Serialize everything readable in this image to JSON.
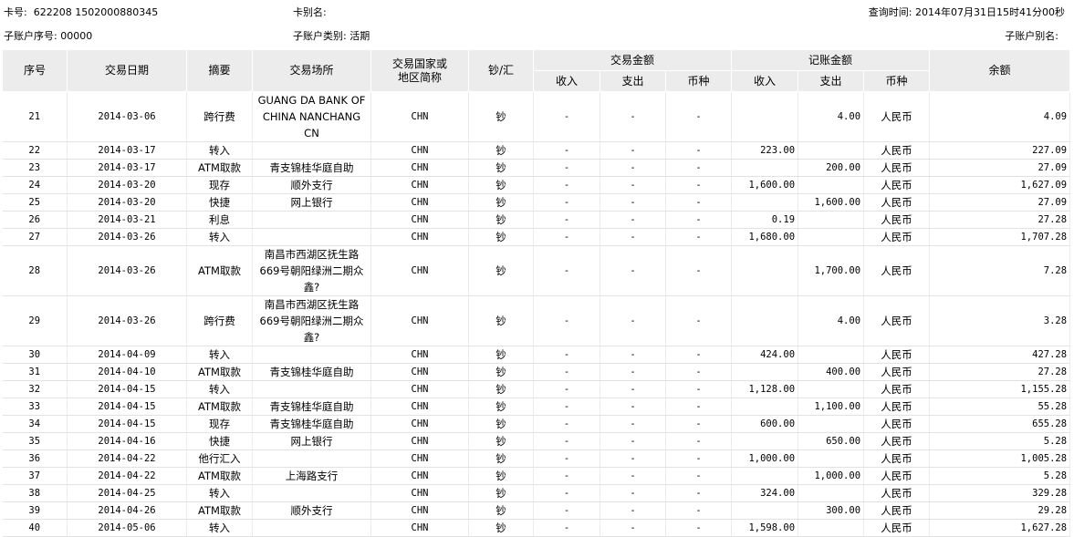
{
  "header": {
    "card_no_label": "卡号:",
    "card_no": "622208 1502000880345",
    "card_alias_label": "卡别名:",
    "query_time_label": "查询时间:",
    "query_time": "2014年07月31日15时41分00秒",
    "sub_no_label": "子账户序号:",
    "sub_no": "00000",
    "sub_type_label": "子账户类别:",
    "sub_type": "活期",
    "sub_alias_label": "子账户别名:"
  },
  "table": {
    "headers": {
      "seq": "序号",
      "date": "交易日期",
      "summary": "摘要",
      "place": "交易场所",
      "country": [
        "交易国家或",
        "地区简称"
      ],
      "cash": "钞/汇",
      "trade_amount": "交易金额",
      "trade_sub": [
        "收入",
        "支出",
        "币种"
      ],
      "booked_amount": "记账金额",
      "booked_sub": [
        "收入",
        "支出",
        "币种"
      ],
      "balance": "余额"
    },
    "rows": [
      [
        "21",
        "2014-03-06",
        "跨行费",
        "GUANG DA BANK OF CHINA NANCHANG CN",
        "CHN",
        "钞",
        "-",
        "-",
        "-",
        null,
        "4.00",
        "人民币",
        "4.09"
      ],
      [
        "22",
        "2014-03-17",
        "转入",
        null,
        "CHN",
        "钞",
        "-",
        "-",
        "-",
        "223.00",
        null,
        "人民币",
        "227.09"
      ],
      [
        "23",
        "2014-03-17",
        "ATM取款",
        "青支锦桂华庭自助",
        "CHN",
        "钞",
        "-",
        "-",
        "-",
        null,
        "200.00",
        "人民币",
        "27.09"
      ],
      [
        "24",
        "2014-03-20",
        "现存",
        "顺外支行",
        "CHN",
        "钞",
        "-",
        "-",
        "-",
        "1,600.00",
        null,
        "人民币",
        "1,627.09"
      ],
      [
        "25",
        "2014-03-20",
        "快捷",
        "网上银行",
        "CHN",
        "钞",
        "-",
        "-",
        "-",
        null,
        "1,600.00",
        "人民币",
        "27.09"
      ],
      [
        "26",
        "2014-03-21",
        "利息",
        null,
        "CHN",
        "钞",
        "-",
        "-",
        "-",
        "0.19",
        null,
        "人民币",
        "27.28"
      ],
      [
        "27",
        "2014-03-26",
        "转入",
        null,
        "CHN",
        "钞",
        "-",
        "-",
        "-",
        "1,680.00",
        null,
        "人民币",
        "1,707.28"
      ],
      [
        "28",
        "2014-03-26",
        "ATM取款",
        "南昌市西湖区抚生路669号朝阳绿洲二期众鑫?",
        "CHN",
        "钞",
        "-",
        "-",
        "-",
        null,
        "1,700.00",
        "人民币",
        "7.28"
      ],
      [
        "29",
        "2014-03-26",
        "跨行费",
        "南昌市西湖区抚生路669号朝阳绿洲二期众鑫?",
        "CHN",
        "钞",
        "-",
        "-",
        "-",
        null,
        "4.00",
        "人民币",
        "3.28"
      ],
      [
        "30",
        "2014-04-09",
        "转入",
        null,
        "CHN",
        "钞",
        "-",
        "-",
        "-",
        "424.00",
        null,
        "人民币",
        "427.28"
      ],
      [
        "31",
        "2014-04-10",
        "ATM取款",
        "青支锦桂华庭自助",
        "CHN",
        "钞",
        "-",
        "-",
        "-",
        null,
        "400.00",
        "人民币",
        "27.28"
      ],
      [
        "32",
        "2014-04-15",
        "转入",
        null,
        "CHN",
        "钞",
        "-",
        "-",
        "-",
        "1,128.00",
        null,
        "人民币",
        "1,155.28"
      ],
      [
        "33",
        "2014-04-15",
        "ATM取款",
        "青支锦桂华庭自助",
        "CHN",
        "钞",
        "-",
        "-",
        "-",
        null,
        "1,100.00",
        "人民币",
        "55.28"
      ],
      [
        "34",
        "2014-04-15",
        "现存",
        "青支锦桂华庭自助",
        "CHN",
        "钞",
        "-",
        "-",
        "-",
        "600.00",
        null,
        "人民币",
        "655.28"
      ],
      [
        "35",
        "2014-04-16",
        "快捷",
        "网上银行",
        "CHN",
        "钞",
        "-",
        "-",
        "-",
        null,
        "650.00",
        "人民币",
        "5.28"
      ],
      [
        "36",
        "2014-04-22",
        "他行汇入",
        null,
        "CHN",
        "钞",
        "-",
        "-",
        "-",
        "1,000.00",
        null,
        "人民币",
        "1,005.28"
      ],
      [
        "37",
        "2014-04-22",
        "ATM取款",
        "上海路支行",
        "CHN",
        "钞",
        "-",
        "-",
        "-",
        null,
        "1,000.00",
        "人民币",
        "5.28"
      ],
      [
        "38",
        "2014-04-25",
        "转入",
        null,
        "CHN",
        "钞",
        "-",
        "-",
        "-",
        "324.00",
        null,
        "人民币",
        "329.28"
      ],
      [
        "39",
        "2014-04-26",
        "ATM取款",
        "顺外支行",
        "CHN",
        "钞",
        "-",
        "-",
        "-",
        null,
        "300.00",
        "人民币",
        "29.28"
      ],
      [
        "40",
        "2014-05-06",
        "转入",
        null,
        "CHN",
        "钞",
        "-",
        "-",
        "-",
        "1,598.00",
        null,
        "人民币",
        "1,627.28"
      ]
    ]
  }
}
